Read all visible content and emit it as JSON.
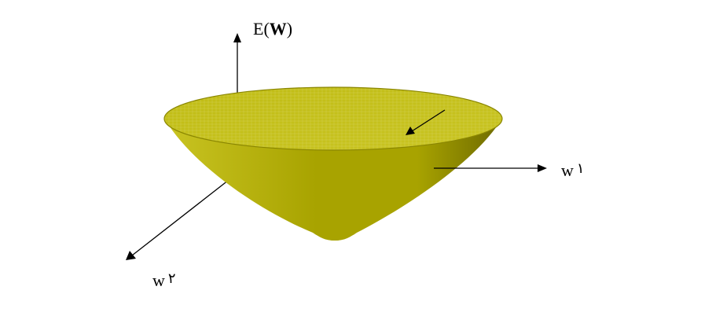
{
  "labels": {
    "z_axis_prefix": "E(",
    "z_axis_var": "W",
    "z_axis_suffix": ")",
    "x_axis": "w",
    "x_axis_index": "١",
    "y_axis": "w",
    "y_axis_index": "٢"
  },
  "colors": {
    "cone_light": "#c9c422",
    "cone_mid": "#a8a300",
    "cone_dark": "#6e6a00",
    "rim_fill": "#c0bc14",
    "rim_edge": "#8a8600",
    "grid_line": "#d8d560",
    "axis": "#000000"
  }
}
